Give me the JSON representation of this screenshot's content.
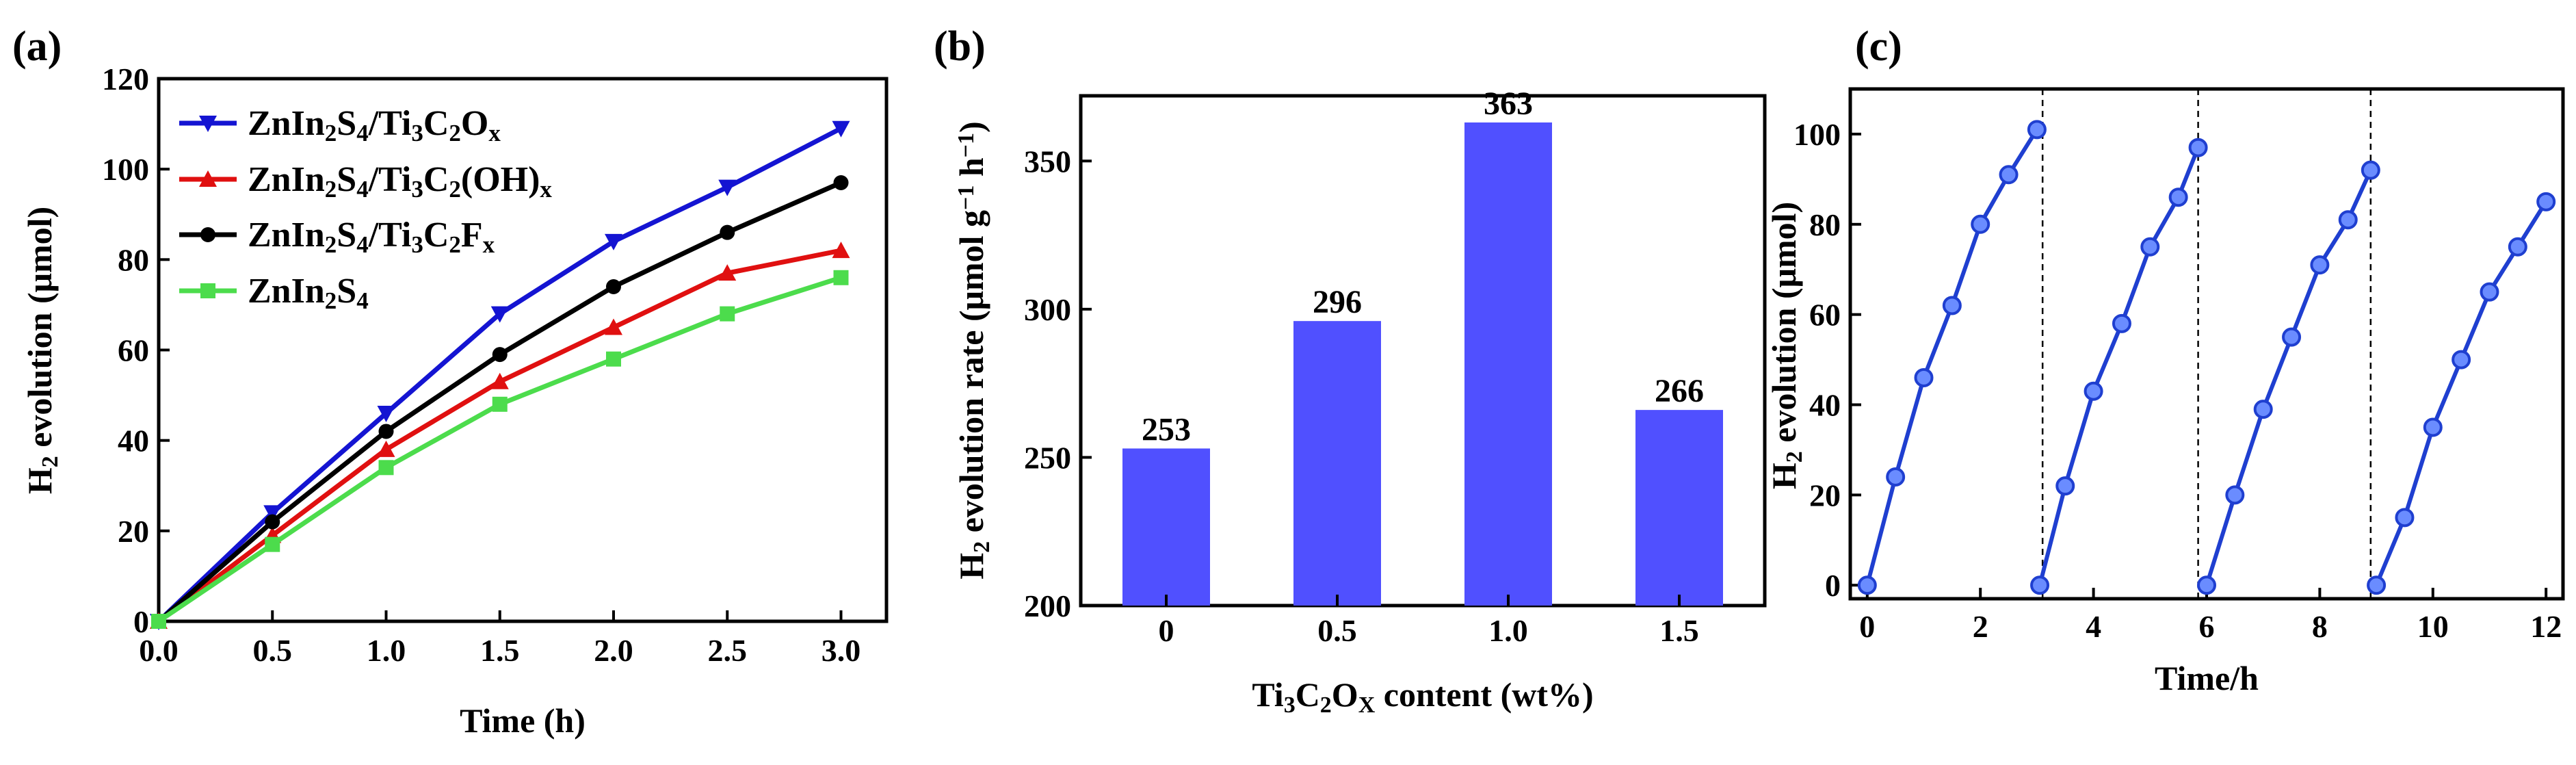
{
  "chart_data": [
    {
      "panel_label": "(a)",
      "type": "line",
      "xlabel": "Time (h)",
      "ylabel_parts": [
        [
          "H",
          ""
        ],
        [
          "2",
          "sub"
        ],
        [
          " evolution (μmol)",
          ""
        ]
      ],
      "x": [
        0,
        0.5,
        1.0,
        1.5,
        2.0,
        2.5,
        3.0
      ],
      "xticks": [
        "0.0",
        "0.5",
        "1.0",
        "1.5",
        "2.0",
        "2.5",
        "3.0"
      ],
      "yticks": [
        "0",
        "20",
        "40",
        "60",
        "80",
        "100",
        "120"
      ],
      "xlim": [
        0,
        3.2
      ],
      "ylim": [
        0,
        120
      ],
      "legend_position": "top-left",
      "series": [
        {
          "name": "ZnIn2S4/Ti3C2Ox",
          "name_parts": [
            [
              "ZnIn",
              ""
            ],
            [
              "2",
              "sub"
            ],
            [
              "S",
              ""
            ],
            [
              "4",
              "sub"
            ],
            [
              "/Ti",
              ""
            ],
            [
              "3",
              "sub"
            ],
            [
              "C",
              ""
            ],
            [
              "2",
              "sub"
            ],
            [
              "O",
              ""
            ],
            [
              "x",
              "sub"
            ]
          ],
          "color": "#1414d2",
          "marker": "triangle-down",
          "values": [
            0,
            24,
            46,
            68,
            84,
            96,
            109
          ]
        },
        {
          "name": "ZnIn2S4/Ti3C2(OH)x",
          "name_parts": [
            [
              "ZnIn",
              ""
            ],
            [
              "2",
              "sub"
            ],
            [
              "S",
              ""
            ],
            [
              "4",
              "sub"
            ],
            [
              "/Ti",
              ""
            ],
            [
              "3",
              "sub"
            ],
            [
              "C",
              ""
            ],
            [
              "2",
              "sub"
            ],
            [
              "(OH)",
              ""
            ],
            [
              "x",
              "sub"
            ]
          ],
          "color": "#e01010",
          "marker": "triangle-up",
          "values": [
            0,
            19,
            38,
            53,
            65,
            77,
            82
          ]
        },
        {
          "name": "ZnIn2S4/Ti3C2Fx",
          "name_parts": [
            [
              "ZnIn",
              ""
            ],
            [
              "2",
              "sub"
            ],
            [
              "S",
              ""
            ],
            [
              "4",
              "sub"
            ],
            [
              "/Ti",
              ""
            ],
            [
              "3",
              "sub"
            ],
            [
              "C",
              ""
            ],
            [
              "2",
              "sub"
            ],
            [
              "F",
              ""
            ],
            [
              "x",
              "sub"
            ]
          ],
          "color": "#000000",
          "marker": "circle",
          "values": [
            0,
            22,
            42,
            59,
            74,
            86,
            97
          ]
        },
        {
          "name": "ZnIn2S4",
          "name_parts": [
            [
              "ZnIn",
              ""
            ],
            [
              "2",
              "sub"
            ],
            [
              "S",
              ""
            ],
            [
              "4",
              "sub"
            ]
          ],
          "color": "#4cdc4c",
          "marker": "square",
          "values": [
            0,
            17,
            34,
            48,
            58,
            68,
            76
          ]
        }
      ]
    },
    {
      "panel_label": "(b)",
      "type": "bar",
      "xlabel_parts": [
        [
          "Ti",
          ""
        ],
        [
          "3",
          "sub"
        ],
        [
          "C",
          ""
        ],
        [
          "2",
          "sub"
        ],
        [
          "O",
          ""
        ],
        [
          "X",
          "sub"
        ],
        [
          " content (wt%)",
          ""
        ]
      ],
      "ylabel_parts": [
        [
          "H",
          ""
        ],
        [
          "2",
          "sub"
        ],
        [
          " evolution rate (μmol g",
          ""
        ],
        [
          "−1",
          "sup"
        ],
        [
          " h",
          ""
        ],
        [
          "−1",
          "sup"
        ],
        [
          ")",
          ""
        ]
      ],
      "categories": [
        "0",
        "0.5",
        "1.0",
        "1.5"
      ],
      "values": [
        253,
        296,
        363,
        266
      ],
      "data_labels": [
        "253",
        "296",
        "363",
        "266"
      ],
      "yticks": [
        "200",
        "250",
        "300",
        "350"
      ],
      "ylim": [
        200,
        372
      ],
      "color": "#5050ff"
    },
    {
      "panel_label": "(c)",
      "type": "line",
      "xlabel": "Time/h",
      "ylabel_parts": [
        [
          "H",
          ""
        ],
        [
          "2",
          "sub"
        ],
        [
          " evolution (μmol)",
          ""
        ]
      ],
      "xticks": [
        "0",
        "2",
        "4",
        "6",
        "8",
        "10",
        "12"
      ],
      "yticks": [
        "0",
        "20",
        "40",
        "60",
        "80",
        "100"
      ],
      "xlim": [
        -0.3,
        12.3
      ],
      "ylim": [
        -3,
        110
      ],
      "cycle_dividers": [
        3.1,
        5.85,
        8.9
      ],
      "color": "#1f3fd0",
      "marker": "circle",
      "cycles": [
        {
          "x": [
            0,
            0.5,
            1.0,
            1.5,
            2.0,
            2.5,
            3.0
          ],
          "y": [
            0,
            24,
            46,
            62,
            80,
            91,
            101
          ]
        },
        {
          "x": [
            3.05,
            3.5,
            4.0,
            4.5,
            5.0,
            5.5,
            5.85
          ],
          "y": [
            0,
            22,
            43,
            58,
            75,
            86,
            97
          ]
        },
        {
          "x": [
            6.0,
            6.5,
            7.0,
            7.5,
            8.0,
            8.5,
            8.9
          ],
          "y": [
            0,
            20,
            39,
            55,
            71,
            81,
            92
          ]
        },
        {
          "x": [
            9.0,
            9.5,
            10.0,
            10.5,
            11.0,
            11.5,
            12.0
          ],
          "y": [
            0,
            15,
            35,
            50,
            65,
            75,
            85
          ]
        }
      ]
    }
  ]
}
